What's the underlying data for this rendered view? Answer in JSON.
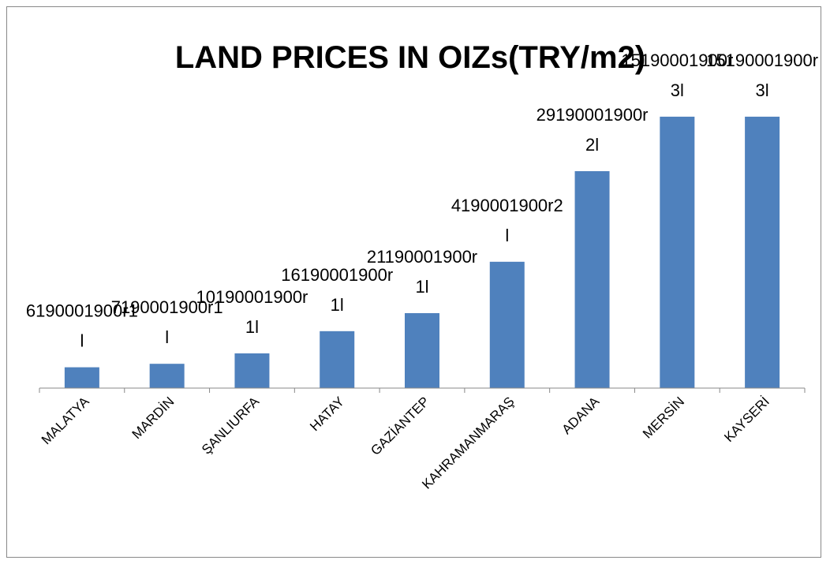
{
  "chart_data": {
    "type": "bar",
    "title": "LAND PRICES IN OIZs(TRY/m2)",
    "categories": [
      "MALATYA",
      "MARDİN",
      "ŞANLIURFA",
      "HATAY",
      "GAZİANTEP",
      "KAHRAMANMARAŞ",
      "ADANA",
      "MERSİN",
      "KAYSERİ"
    ],
    "values": [
      6,
      7,
      10,
      16.4,
      21.6,
      36.4,
      62.5,
      78.2,
      78.2
    ],
    "value_labels": [
      [
        "6190001900r1",
        "l"
      ],
      [
        "7190001900r1",
        "l"
      ],
      [
        "10190001900r",
        "1l"
      ],
      [
        "16190001900r",
        "1l"
      ],
      [
        "21190001900r",
        "1l"
      ],
      [
        "4190001900r2",
        "l"
      ],
      [
        "29190001900r",
        "2l"
      ],
      [
        "15190001900r",
        "3l"
      ],
      [
        "15190001900r",
        "3l"
      ]
    ],
    "color": "#4f81bd",
    "ylim": [
      0,
      100
    ]
  }
}
